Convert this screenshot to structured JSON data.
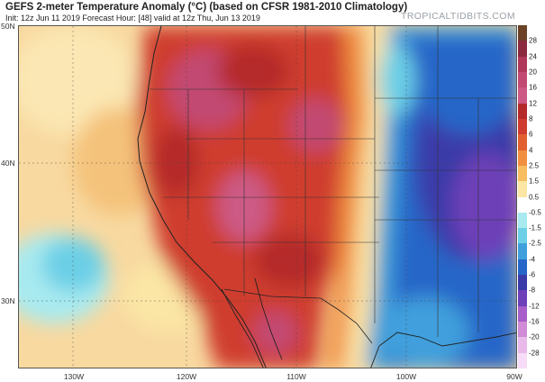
{
  "header": {
    "title": "GEFS 2-meter Temperature Anomaly (°C) (based on CFSR 1981-2010 Climatology)",
    "subtitle": "Init: 12z Jun 11 2019   Forecast Hour: [48]   valid at 12z Thu, Jun 13 2019",
    "credit": "TROPICALTIDBITS.COM"
  },
  "map": {
    "lat_labels": [
      "50N",
      "40N",
      "30N"
    ],
    "lon_labels": [
      "130W",
      "120W",
      "110W",
      "100W",
      "90W"
    ]
  },
  "colorbar": {
    "labels": [
      "28",
      "24",
      "20",
      "16",
      "12",
      "8",
      "6",
      "4",
      "2.5",
      "1.5",
      "0.5",
      "-0.5",
      "-1.5",
      "-2.5",
      "-4",
      "-6",
      "-8",
      "-12",
      "-16",
      "-20",
      "-28"
    ],
    "colors": [
      "#6b4226",
      "#8b2a3f",
      "#b0385a",
      "#c24a72",
      "#cc5a85",
      "#b52a2a",
      "#cf3c2f",
      "#e2602f",
      "#f08f3f",
      "#f7bd60",
      "#fbe6a5",
      "#ffffff",
      "#a8eaf0",
      "#6ccfe6",
      "#3f9fdc",
      "#2566c8",
      "#3a3aa8",
      "#6d3fb8",
      "#a85ec8",
      "#d08ad6",
      "#e9b9e9",
      "#f6dcf6"
    ]
  }
}
